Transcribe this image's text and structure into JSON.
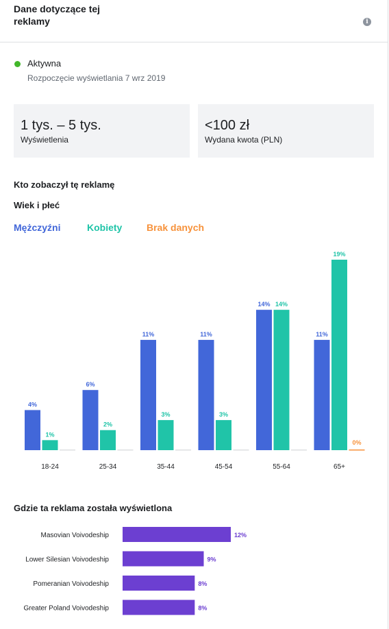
{
  "header": {
    "title_line1": "Dane dotyczące tej",
    "title_line2": "reklamy",
    "info_icon": "info-icon"
  },
  "status": {
    "label": "Aktywna",
    "start": "Rozpoczęcie wyświetlania 7 wrz 2019",
    "dot_color": "#42b72a"
  },
  "stats": {
    "impressions_value": "1 tys. – 5 tys.",
    "impressions_label": "Wyświetlenia",
    "spend_value": "<100 zł",
    "spend_label": "Wydana kwota (PLN)"
  },
  "audience": {
    "title": "Kto zobaczył tę reklamę",
    "subtitle": "Wiek i płeć"
  },
  "placement": {
    "title": "Gdzie ta reklama została wyświetlona"
  },
  "chart_data": [
    {
      "type": "bar",
      "categories": [
        "18-24",
        "25-34",
        "35-44",
        "45-54",
        "55-64",
        "65+"
      ],
      "series": [
        {
          "name": "Mężczyźni",
          "color": "#4267d9",
          "values": [
            4,
            6,
            11,
            11,
            14,
            11
          ],
          "labels": [
            "4%",
            "6%",
            "11%",
            "11%",
            "14%",
            "11%"
          ]
        },
        {
          "name": "Kobiety",
          "color": "#20c4a8",
          "values": [
            1,
            2,
            3,
            3,
            14,
            19
          ],
          "labels": [
            "1%",
            "2%",
            "3%",
            "3%",
            "14%",
            "19%"
          ]
        },
        {
          "name": "Brak danych",
          "color": "#f7923b",
          "values": [
            0,
            0,
            0,
            0,
            0,
            0
          ],
          "labels": [
            "",
            "",
            "",
            "",
            "",
            "0%"
          ]
        }
      ],
      "ylim": [
        0,
        19
      ],
      "legend_position": "top-left",
      "grid": false
    },
    {
      "type": "bar",
      "orientation": "horizontal",
      "categories": [
        "Masovian Voivodeship",
        "Lower Silesian Voivodeship",
        "Pomeranian Voivodeship",
        "Greater Poland Voivodeship"
      ],
      "values": [
        12,
        9,
        8,
        8
      ],
      "labels": [
        "12%",
        "9%",
        "8%",
        "8%"
      ],
      "color": "#6c3fd1",
      "xlim": [
        0,
        12
      ]
    }
  ]
}
